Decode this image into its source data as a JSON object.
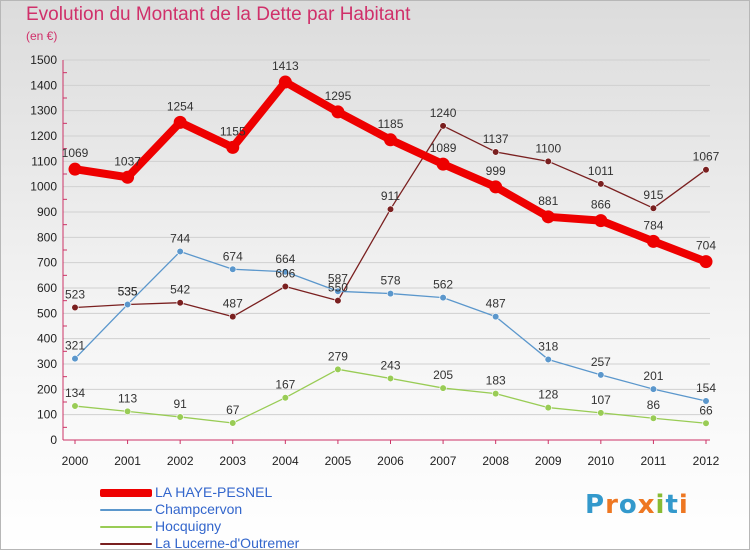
{
  "title": "Evolution du Montant de la Dette par Habitant",
  "subtitle": "(en €)",
  "logo": {
    "text": "Proxiti",
    "colors": [
      "#3399cc",
      "#ee7722",
      "#3399cc",
      "#ee7722",
      "#88bb33",
      "#3399cc",
      "#ee7722"
    ]
  },
  "chart_data": {
    "type": "line",
    "x": [
      "2000",
      "2001",
      "2002",
      "2003",
      "2004",
      "2005",
      "2006",
      "2007",
      "2008",
      "2009",
      "2010",
      "2011",
      "2012"
    ],
    "yticks": [
      "0",
      "100",
      "200",
      "300",
      "400",
      "500",
      "600",
      "700",
      "800",
      "900",
      "1000",
      "1100",
      "1200",
      "1300",
      "1400",
      "1500"
    ],
    "ylim": [
      0,
      1500
    ],
    "grid": true,
    "legend": "bottom-left",
    "series": [
      {
        "name": "La Lucerne-d'Outremer",
        "color": "#7a2020",
        "values": [
          523,
          535,
          542,
          487,
          606,
          550,
          911,
          1240,
          1137,
          1100,
          1011,
          915,
          1067
        ]
      },
      {
        "name": "Champcervon",
        "color": "#5b97cc",
        "values": [
          321,
          535,
          744,
          674,
          664,
          587,
          578,
          562,
          487,
          318,
          257,
          201,
          154
        ]
      },
      {
        "name": "Hocquigny",
        "color": "#99cc55",
        "values": [
          134,
          113,
          91,
          67,
          167,
          279,
          243,
          205,
          183,
          128,
          107,
          86,
          66
        ]
      },
      {
        "name": "LA HAYE-PESNEL",
        "color": "#ee0000",
        "values": [
          1069,
          1037,
          1254,
          1155,
          1413,
          1295,
          1185,
          1089,
          999,
          881,
          866,
          784,
          704
        ]
      }
    ],
    "legend_order": [
      "LA HAYE-PESNEL",
      "Champcervon",
      "Hocquigny",
      "La Lucerne-d'Outremer"
    ]
  }
}
